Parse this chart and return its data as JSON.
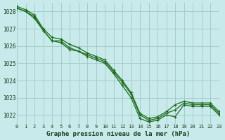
{
  "title": "Graphe pression niveau de la mer (hPa)",
  "bg_color": "#c8eaea",
  "grid_color": "#a0c8c8",
  "line_color": "#1a6b1a",
  "xlim": [
    0,
    23
  ],
  "ylim": [
    1021.5,
    1028.5
  ],
  "yticks": [
    1022,
    1023,
    1024,
    1025,
    1026,
    1027,
    1028
  ],
  "xticks": [
    0,
    1,
    2,
    3,
    4,
    5,
    6,
    7,
    8,
    9,
    10,
    11,
    12,
    13,
    14,
    15,
    16,
    17,
    18,
    19,
    20,
    21,
    22,
    23
  ],
  "line1": [
    1028.2,
    1028.0,
    1027.7,
    1026.9,
    1026.3,
    1026.3,
    1025.9,
    1025.7,
    1025.4,
    1025.2,
    1025.0,
    1024.4,
    1023.7,
    1023.0,
    1021.8,
    1021.6,
    1021.7,
    1022.0,
    1021.9,
    1022.6,
    1022.5,
    1022.5,
    1022.5,
    1022.0
  ],
  "line2": [
    1028.2,
    1028.0,
    1027.6,
    1026.9,
    1026.3,
    1026.2,
    1025.8,
    1025.7,
    1025.5,
    1025.3,
    1025.1,
    1024.5,
    1023.9,
    1023.2,
    1022.0,
    1021.7,
    1021.8,
    1022.1,
    1022.3,
    1022.7,
    1022.6,
    1022.6,
    1022.6,
    1022.1
  ],
  "line3": [
    1028.3,
    1028.1,
    1027.8,
    1027.0,
    1026.5,
    1026.4,
    1026.1,
    1025.9,
    1025.6,
    1025.4,
    1025.2,
    1024.6,
    1024.0,
    1023.3,
    1022.1,
    1021.8,
    1021.9,
    1022.2,
    1022.6,
    1022.8,
    1022.7,
    1022.7,
    1022.7,
    1022.2
  ]
}
